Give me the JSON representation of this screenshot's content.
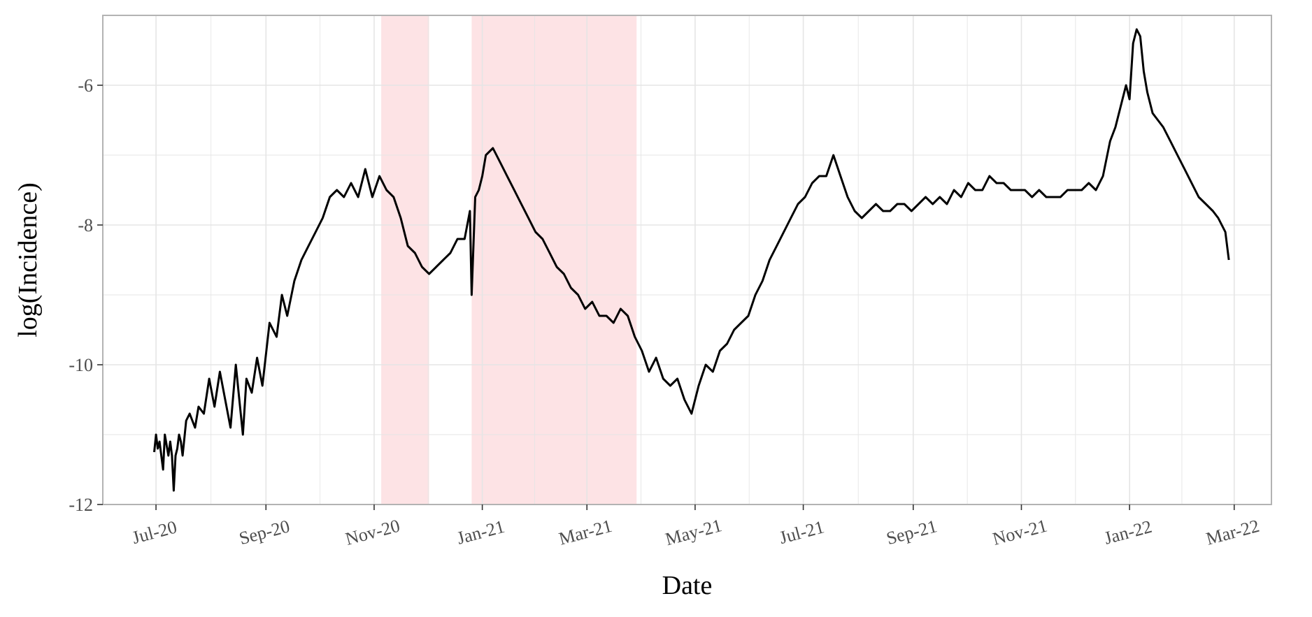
{
  "chart_data": {
    "type": "line",
    "title": "",
    "xlabel": "Date",
    "ylabel": "log(Incidence)",
    "xlim": [
      "2020-06-01",
      "2022-03-22"
    ],
    "ylim": [
      -12,
      -5
    ],
    "grid": true,
    "y_ticks": [
      -12,
      -10,
      -8,
      -6
    ],
    "x_ticks": [
      {
        "label": "Jul-20",
        "date": "2020-07-01"
      },
      {
        "label": "Sep-20",
        "date": "2020-09-01"
      },
      {
        "label": "Nov-20",
        "date": "2020-11-01"
      },
      {
        "label": "Jan-21",
        "date": "2021-01-01"
      },
      {
        "label": "Mar-21",
        "date": "2021-03-01"
      },
      {
        "label": "May-21",
        "date": "2021-05-01"
      },
      {
        "label": "Jul-21",
        "date": "2021-07-01"
      },
      {
        "label": "Sep-21",
        "date": "2021-09-01"
      },
      {
        "label": "Nov-21",
        "date": "2021-11-01"
      },
      {
        "label": "Jan-22",
        "date": "2022-01-01"
      },
      {
        "label": "Mar-22",
        "date": "2022-03-01"
      }
    ],
    "shaded_periods": [
      {
        "start": "2020-11-05",
        "end": "2020-12-02"
      },
      {
        "start": "2020-12-26",
        "end": "2021-03-29"
      }
    ],
    "colors": {
      "line": "#000000",
      "shade": "#fde3e5",
      "grid": "#e5e5e5",
      "panel_border": "#b3b3b3"
    },
    "series": [
      {
        "x": [
          "2020-06-30",
          "2020-07-01",
          "2020-07-02",
          "2020-07-03",
          "2020-07-05",
          "2020-07-06",
          "2020-07-08",
          "2020-07-09",
          "2020-07-10",
          "2020-07-11",
          "2020-07-12",
          "2020-07-13",
          "2020-07-14",
          "2020-07-15",
          "2020-07-16",
          "2020-07-18",
          "2020-07-20",
          "2020-07-23",
          "2020-07-25",
          "2020-07-28",
          "2020-07-31",
          "2020-08-03",
          "2020-08-06",
          "2020-08-09",
          "2020-08-12",
          "2020-08-15",
          "2020-08-17",
          "2020-08-19",
          "2020-08-21",
          "2020-08-24",
          "2020-08-27",
          "2020-08-30",
          "2020-09-03",
          "2020-09-07",
          "2020-09-10",
          "2020-09-13",
          "2020-09-17",
          "2020-09-21",
          "2020-09-25",
          "2020-09-29",
          "2020-10-03",
          "2020-10-07",
          "2020-10-11",
          "2020-10-15",
          "2020-10-19",
          "2020-10-23",
          "2020-10-27",
          "2020-10-31",
          "2020-11-04",
          "2020-11-08",
          "2020-11-12",
          "2020-11-16",
          "2020-11-20",
          "2020-11-24",
          "2020-11-28",
          "2020-12-02",
          "2020-12-06",
          "2020-12-10",
          "2020-12-14",
          "2020-12-18",
          "2020-12-22",
          "2020-12-25",
          "2020-12-26",
          "2020-12-28",
          "2020-12-30",
          "2021-01-01",
          "2021-01-03",
          "2021-01-07",
          "2021-01-11",
          "2021-01-15",
          "2021-01-19",
          "2021-01-23",
          "2021-01-27",
          "2021-01-31",
          "2021-02-04",
          "2021-02-08",
          "2021-02-12",
          "2021-02-16",
          "2021-02-20",
          "2021-02-24",
          "2021-02-28",
          "2021-03-04",
          "2021-03-08",
          "2021-03-12",
          "2021-03-16",
          "2021-03-20",
          "2021-03-24",
          "2021-03-28",
          "2021-04-01",
          "2021-04-05",
          "2021-04-09",
          "2021-04-13",
          "2021-04-17",
          "2021-04-21",
          "2021-04-25",
          "2021-04-29",
          "2021-05-03",
          "2021-05-07",
          "2021-05-11",
          "2021-05-15",
          "2021-05-19",
          "2021-05-23",
          "2021-05-27",
          "2021-05-31",
          "2021-06-04",
          "2021-06-08",
          "2021-06-12",
          "2021-06-16",
          "2021-06-20",
          "2021-06-24",
          "2021-06-28",
          "2021-07-02",
          "2021-07-06",
          "2021-07-10",
          "2021-07-14",
          "2021-07-18",
          "2021-07-22",
          "2021-07-26",
          "2021-07-30",
          "2021-08-03",
          "2021-08-07",
          "2021-08-11",
          "2021-08-15",
          "2021-08-19",
          "2021-08-23",
          "2021-08-27",
          "2021-08-31",
          "2021-09-04",
          "2021-09-08",
          "2021-09-12",
          "2021-09-16",
          "2021-09-20",
          "2021-09-24",
          "2021-09-28",
          "2021-10-02",
          "2021-10-06",
          "2021-10-10",
          "2021-10-14",
          "2021-10-18",
          "2021-10-22",
          "2021-10-26",
          "2021-10-30",
          "2021-11-03",
          "2021-11-07",
          "2021-11-11",
          "2021-11-15",
          "2021-11-19",
          "2021-11-23",
          "2021-11-27",
          "2021-12-01",
          "2021-12-05",
          "2021-12-09",
          "2021-12-13",
          "2021-12-17",
          "2021-12-21",
          "2021-12-24",
          "2021-12-27",
          "2021-12-30",
          "2022-01-01",
          "2022-01-03",
          "2022-01-05",
          "2022-01-07",
          "2022-01-09",
          "2022-01-11",
          "2022-01-14",
          "2022-01-17",
          "2022-01-20",
          "2022-01-24",
          "2022-01-28",
          "2022-02-01",
          "2022-02-05",
          "2022-02-09",
          "2022-02-13",
          "2022-02-17",
          "2022-02-20",
          "2022-02-22",
          "2022-02-24",
          "2022-02-26"
        ],
        "y": [
          -11.25,
          -11.0,
          -11.2,
          -11.1,
          -11.5,
          -11.0,
          -11.3,
          -11.1,
          -11.3,
          -11.8,
          -11.3,
          -11.2,
          -11.0,
          -11.1,
          -11.3,
          -10.8,
          -10.7,
          -10.9,
          -10.6,
          -10.7,
          -10.2,
          -10.6,
          -10.1,
          -10.5,
          -10.9,
          -10.0,
          -10.5,
          -11.0,
          -10.2,
          -10.4,
          -9.9,
          -10.3,
          -9.4,
          -9.6,
          -9.0,
          -9.3,
          -8.8,
          -8.5,
          -8.3,
          -8.1,
          -7.9,
          -7.6,
          -7.5,
          -7.6,
          -7.4,
          -7.6,
          -7.2,
          -7.6,
          -7.3,
          -7.5,
          -7.6,
          -7.9,
          -8.3,
          -8.4,
          -8.6,
          -8.7,
          -8.6,
          -8.5,
          -8.4,
          -8.2,
          -8.2,
          -7.8,
          -9.0,
          -7.6,
          -7.5,
          -7.3,
          -7.0,
          -6.9,
          -7.1,
          -7.3,
          -7.5,
          -7.7,
          -7.9,
          -8.1,
          -8.2,
          -8.4,
          -8.6,
          -8.7,
          -8.9,
          -9.0,
          -9.2,
          -9.1,
          -9.3,
          -9.3,
          -9.4,
          -9.2,
          -9.3,
          -9.6,
          -9.8,
          -10.1,
          -9.9,
          -10.2,
          -10.3,
          -10.2,
          -10.5,
          -10.7,
          -10.3,
          -10.0,
          -10.1,
          -9.8,
          -9.7,
          -9.5,
          -9.4,
          -9.3,
          -9.0,
          -8.8,
          -8.5,
          -8.3,
          -8.1,
          -7.9,
          -7.7,
          -7.6,
          -7.4,
          -7.3,
          -7.3,
          -7.0,
          -7.3,
          -7.6,
          -7.8,
          -7.9,
          -7.8,
          -7.7,
          -7.8,
          -7.8,
          -7.7,
          -7.7,
          -7.8,
          -7.7,
          -7.6,
          -7.7,
          -7.6,
          -7.7,
          -7.5,
          -7.6,
          -7.4,
          -7.5,
          -7.5,
          -7.3,
          -7.4,
          -7.4,
          -7.5,
          -7.5,
          -7.5,
          -7.6,
          -7.5,
          -7.6,
          -7.6,
          -7.6,
          -7.5,
          -7.5,
          -7.5,
          -7.4,
          -7.5,
          -7.3,
          -6.8,
          -6.6,
          -6.3,
          -6.0,
          -6.2,
          -5.4,
          -5.2,
          -5.3,
          -5.8,
          -6.1,
          -6.4,
          -6.5,
          -6.6,
          -6.8,
          -7.0,
          -7.2,
          -7.4,
          -7.6,
          -7.7,
          -7.8,
          -7.9,
          -8.0,
          -8.1,
          -8.5
        ]
      }
    ]
  }
}
